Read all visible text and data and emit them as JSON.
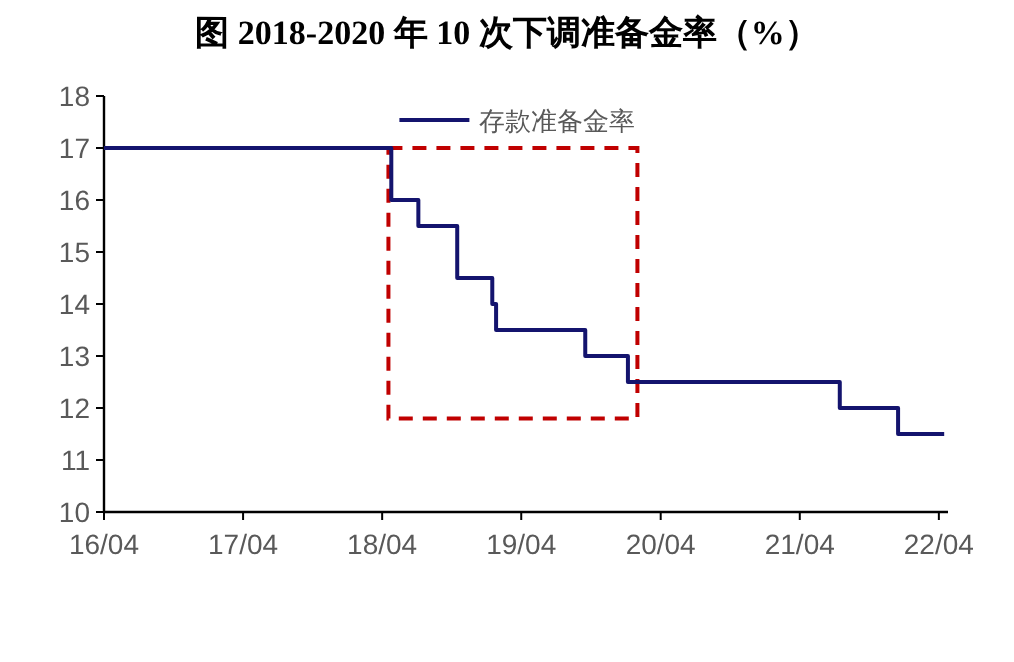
{
  "chart_data": {
    "type": "step",
    "title": "图    2018-2020 年 10 次下调准备金率（%）",
    "x": [
      "2016-04-01",
      "2018-04-25",
      "2018-07-05",
      "2018-10-15",
      "2019-01-15",
      "2019-01-25",
      "2019-09-16",
      "2020-01-06",
      "2021-07-15",
      "2021-12-15",
      "2022-04-15"
    ],
    "series": [
      {
        "name": "存款准备金率",
        "color": "#14146e",
        "values": [
          17,
          16,
          15.5,
          14.5,
          14,
          13.5,
          13,
          12.5,
          12,
          11.5,
          11.5
        ]
      }
    ],
    "xlim": [
      "2016-04-01",
      "2022-04-25"
    ],
    "xticks": [
      {
        "value": "2016-04-01",
        "label": "16/04"
      },
      {
        "value": "2017-04-01",
        "label": "17/04"
      },
      {
        "value": "2018-04-01",
        "label": "18/04"
      },
      {
        "value": "2019-04-01",
        "label": "19/04"
      },
      {
        "value": "2020-04-01",
        "label": "20/04"
      },
      {
        "value": "2021-04-01",
        "label": "21/04"
      },
      {
        "value": "2022-04-01",
        "label": "22/04"
      }
    ],
    "ylim": [
      10,
      18
    ],
    "yticks": [
      10,
      11,
      12,
      13,
      14,
      15,
      16,
      17,
      18
    ],
    "legend": "top",
    "grid": false
  }
}
